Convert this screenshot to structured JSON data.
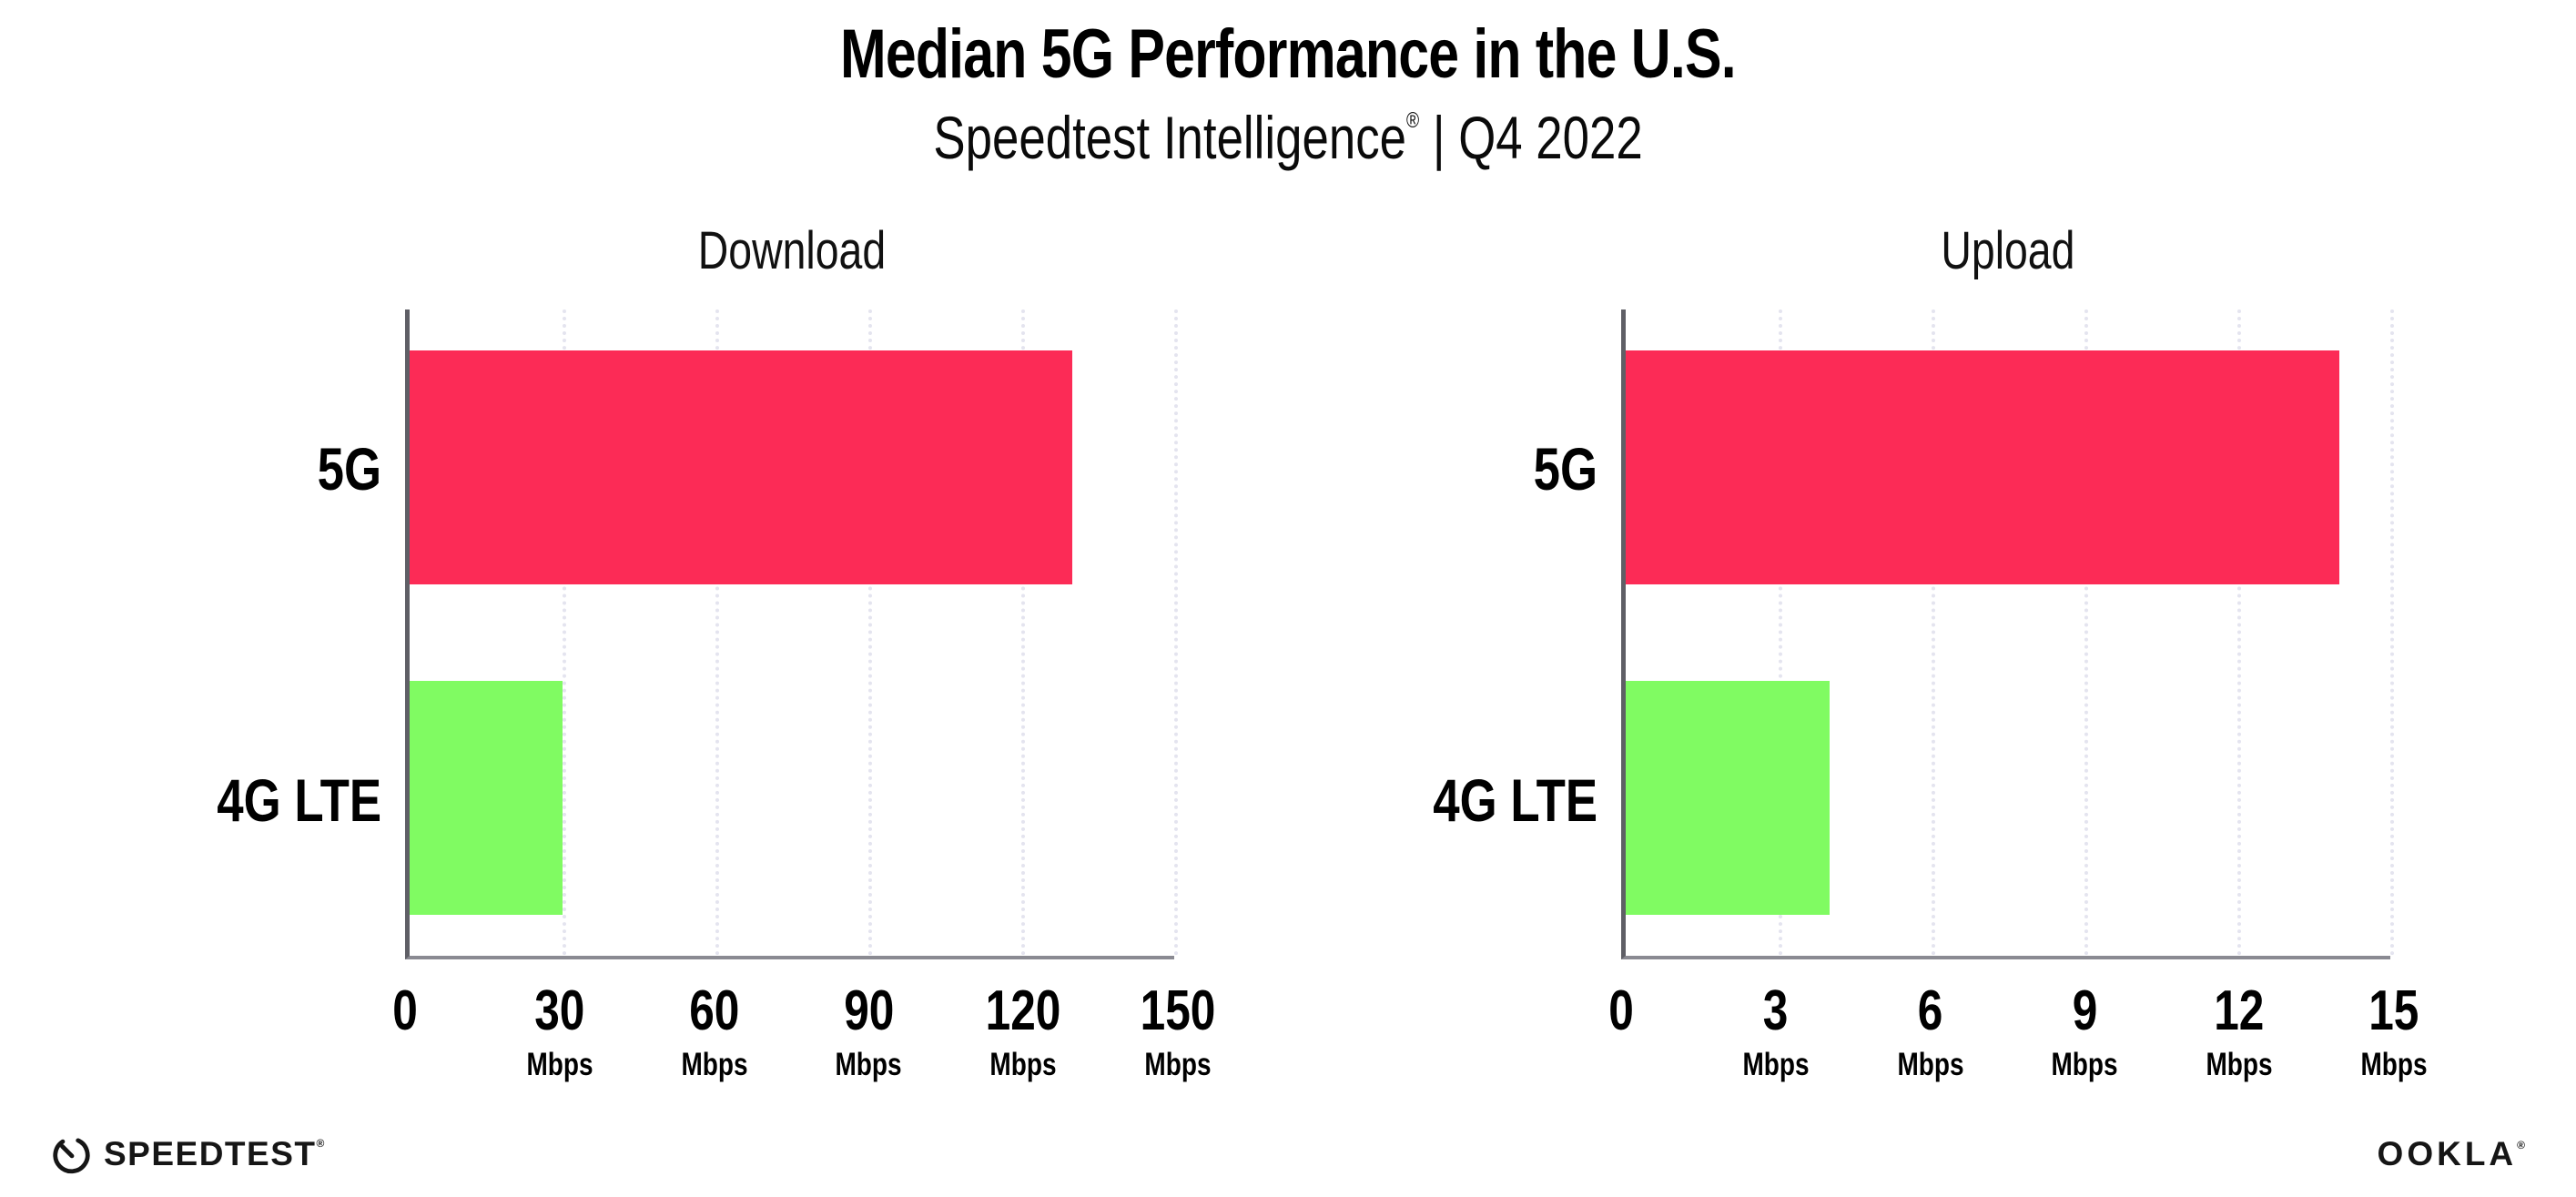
{
  "header": {
    "title": "Median 5G Performance in the U.S.",
    "subtitle_brand": "Speedtest Intelligence",
    "subtitle_reg": "®",
    "subtitle_rest": " | Q4 2022"
  },
  "footer": {
    "speedtest_word": "SPEEDTEST",
    "speedtest_reg": "®",
    "ookla_word": "OOKLA",
    "ookla_reg": "®"
  },
  "colors": {
    "bar_5g": "#fc2b56",
    "bar_4g_lte": "#80fb62",
    "gridline": "#e4e4ef",
    "axis_x": "#8a8a92",
    "axis_y": "#5f5f66",
    "text": "#000000"
  },
  "chart_data": [
    {
      "type": "bar",
      "orientation": "horizontal",
      "title": "Download",
      "categories": [
        "5G",
        "4G LTE"
      ],
      "values": [
        130,
        30
      ],
      "unit": "Mbps",
      "xlim": [
        0,
        150
      ],
      "ticks": [
        0,
        30,
        60,
        90,
        120,
        150
      ],
      "bar_colors": [
        "#fc2b56",
        "#80fb62"
      ],
      "grid": "vertical-dotted",
      "legend": "none"
    },
    {
      "type": "bar",
      "orientation": "horizontal",
      "title": "Upload",
      "categories": [
        "5G",
        "4G LTE"
      ],
      "values": [
        14,
        4
      ],
      "unit": "Mbps",
      "xlim": [
        0,
        15
      ],
      "ticks": [
        0,
        3,
        6,
        9,
        12,
        15
      ],
      "bar_colors": [
        "#fc2b56",
        "#80fb62"
      ],
      "grid": "vertical-dotted",
      "legend": "none"
    }
  ]
}
